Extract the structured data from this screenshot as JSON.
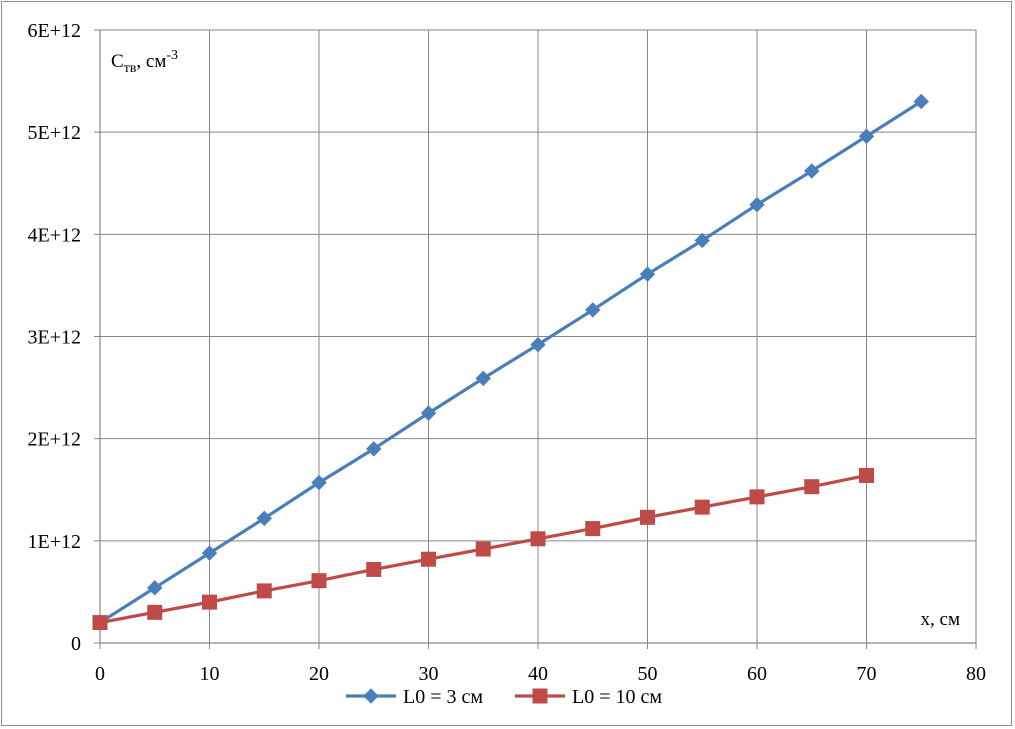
{
  "chart_data": {
    "type": "line",
    "title": "",
    "ylabel": {
      "main": "C",
      "sub": "тв",
      "unit": ", см",
      "sup": "-3"
    },
    "xlabel": "x, см",
    "xlim": [
      0,
      80
    ],
    "ylim": [
      0,
      6000000000000.0
    ],
    "x_ticks": [
      0,
      10,
      20,
      30,
      40,
      50,
      60,
      70,
      80
    ],
    "x_tick_labels": [
      "0",
      "10",
      "20",
      "30",
      "40",
      "50",
      "60",
      "70",
      "80"
    ],
    "y_ticks": [
      0,
      1000000000000.0,
      2000000000000.0,
      3000000000000.0,
      4000000000000.0,
      5000000000000.0,
      6000000000000.0
    ],
    "y_tick_labels": [
      "0",
      "1E+12",
      "2E+12",
      "3E+12",
      "4E+12",
      "5E+12",
      "6E+12"
    ],
    "grid": true,
    "legend_position": "bottom",
    "series": [
      {
        "name": "L0 = 3 см",
        "color": "#4a7ebb",
        "marker": "diamond",
        "x": [
          0,
          5,
          10,
          15,
          20,
          25,
          30,
          35,
          40,
          45,
          50,
          55,
          60,
          65,
          70,
          75
        ],
        "y": [
          200000000000.0,
          540000000000.0,
          880000000000.0,
          1220000000000.0,
          1570000000000.0,
          1900000000000.0,
          2250000000000.0,
          2590000000000.0,
          2920000000000.0,
          3260000000000.0,
          3610000000000.0,
          3940000000000.0,
          4290000000000.0,
          4620000000000.0,
          4960000000000.0,
          5300000000000.0
        ]
      },
      {
        "name": "L0 = 10 см",
        "color": "#be4b48",
        "marker": "square",
        "x": [
          0,
          5,
          10,
          15,
          20,
          25,
          30,
          35,
          40,
          45,
          50,
          55,
          60,
          65,
          70
        ],
        "y": [
          200000000000.0,
          300000000000.0,
          400000000000.0,
          510000000000.0,
          610000000000.0,
          720000000000.0,
          820000000000.0,
          920000000000.0,
          1020000000000.0,
          1120000000000.0,
          1230000000000.0,
          1330000000000.0,
          1430000000000.0,
          1530000000000.0,
          1640000000000.0
        ]
      }
    ]
  }
}
